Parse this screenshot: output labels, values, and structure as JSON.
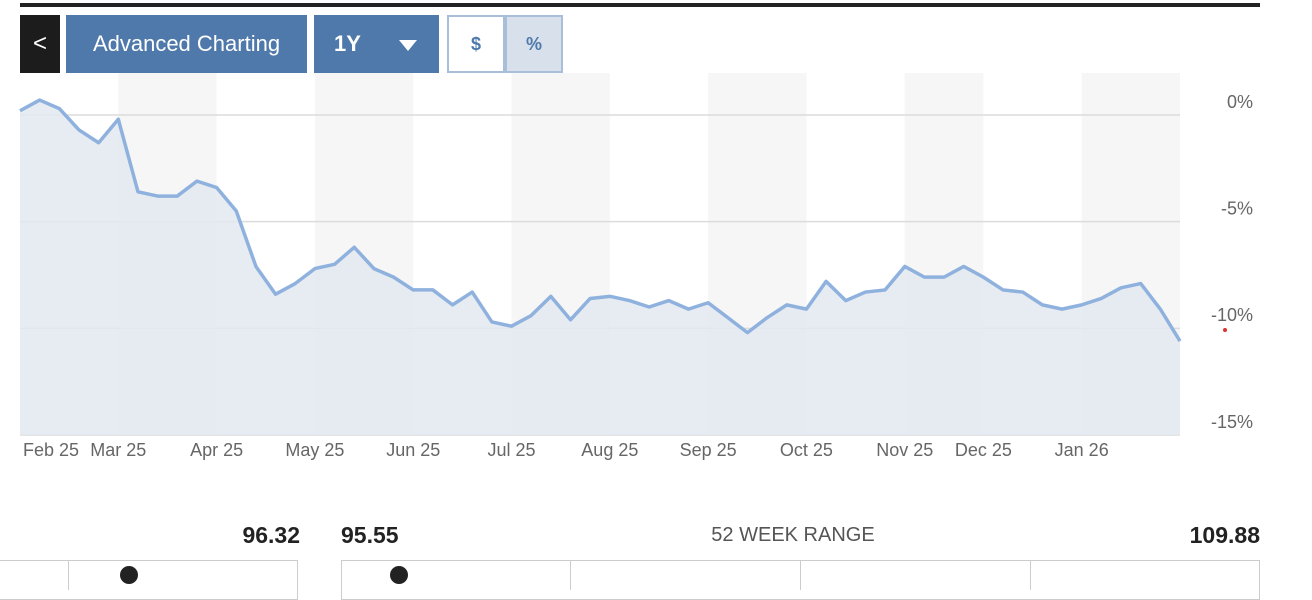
{
  "toolbar": {
    "back": "<",
    "title": "Advanced Charting",
    "range": "1Y",
    "units": [
      "$",
      "%"
    ]
  },
  "chart_data": {
    "type": "line",
    "categories": [
      null,
      "Feb 25",
      null,
      null,
      null,
      "Mar 25",
      null,
      null,
      null,
      null,
      "Apr 25",
      null,
      null,
      null,
      null,
      "May 25",
      null,
      null,
      null,
      null,
      "Jun 25",
      null,
      null,
      null,
      null,
      "Jul 25",
      null,
      null,
      null,
      null,
      "Aug 25",
      null,
      null,
      null,
      null,
      "Sep 25",
      null,
      null,
      null,
      null,
      "Oct 25",
      null,
      null,
      null,
      null,
      "Nov 25",
      null,
      null,
      null,
      "Dec 25",
      null,
      null,
      null,
      null,
      "Jan 26",
      null,
      null,
      null,
      null,
      null
    ],
    "values": [
      0.2,
      0.7,
      0.3,
      -0.7,
      -1.3,
      -0.2,
      -3.6,
      -3.8,
      -3.8,
      -3.1,
      -3.4,
      -4.5,
      -7.1,
      -8.4,
      -7.9,
      -7.2,
      -7.0,
      -6.2,
      -7.2,
      -7.6,
      -8.2,
      -8.2,
      -8.9,
      -8.3,
      -9.7,
      -9.9,
      -9.4,
      -8.5,
      -9.6,
      -8.6,
      -8.5,
      -8.7,
      -9.0,
      -8.7,
      -9.1,
      -8.8,
      -9.5,
      -10.2,
      -9.5,
      -8.9,
      -9.1,
      -7.8,
      -8.7,
      -8.3,
      -8.2,
      -7.1,
      -7.6,
      -7.6,
      -7.1,
      -7.6,
      -8.2,
      -8.3,
      -8.9,
      -9.1,
      -8.9,
      -8.6,
      -8.1,
      -7.9,
      -9.1,
      -10.6
    ],
    "color": "#8fb1de",
    "area_color": "#e3e9f1",
    "ylim": [
      -15,
      1.5
    ],
    "yticks": [
      {
        "value": 0,
        "label": "0%"
      },
      {
        "value": -5,
        "label": "-5%"
      },
      {
        "value": -10,
        "label": "-10%"
      },
      {
        "value": -15,
        "label": "-15%"
      }
    ],
    "grid": true,
    "month_bands": true
  },
  "quote": {
    "price": 96.32,
    "range_low": 95.55,
    "range_label": "52 WEEK RANGE",
    "range_high": 109.88
  }
}
